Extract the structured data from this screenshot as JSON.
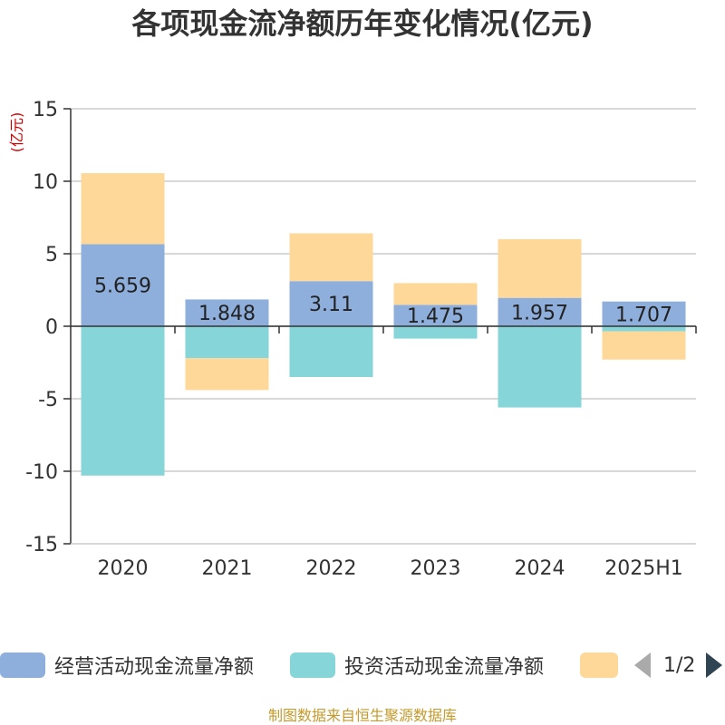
{
  "chart_data": {
    "type": "bar",
    "stacked": true,
    "title": "各项现金流净额历年变化情况(亿元)",
    "ylabel": "(亿元)",
    "xlabel": "",
    "ylim": [
      -15,
      15
    ],
    "yticks": [
      15,
      10,
      5,
      0,
      -5,
      -10,
      -15
    ],
    "categories": [
      "2020",
      "2021",
      "2022",
      "2023",
      "2024",
      "2025H1"
    ],
    "series": [
      {
        "name": "经营活动现金流量净额",
        "color": "#8eaedb",
        "values": [
          5.659,
          1.848,
          3.11,
          1.475,
          1.957,
          1.707
        ],
        "labels": [
          "5.659",
          "1.848",
          "3.11",
          "1.475",
          "1.957",
          "1.707"
        ]
      },
      {
        "name": "投资活动现金流量净额",
        "color": "#86d6d9",
        "values": [
          -10.3,
          -2.2,
          -3.5,
          -0.85,
          -5.6,
          -0.35
        ]
      },
      {
        "name": "",
        "color": "#fdd899",
        "values": [
          4.9,
          -2.2,
          3.3,
          1.5,
          4.05,
          -1.95
        ]
      }
    ],
    "legend": {
      "position": "bottom",
      "page": "1/2"
    },
    "grid": true
  },
  "source": "制图数据来自恒生聚源数据库"
}
